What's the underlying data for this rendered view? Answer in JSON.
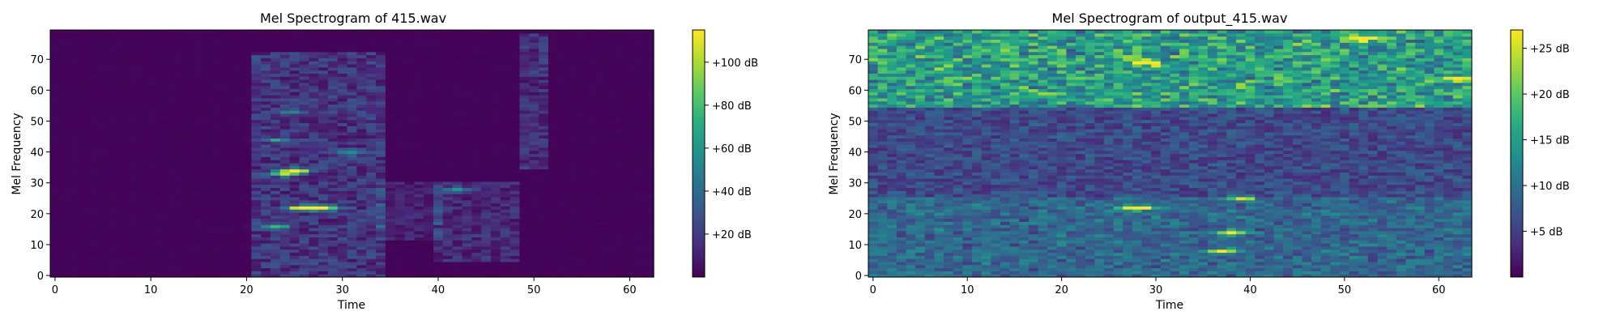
{
  "chart_data": [
    {
      "type": "heatmap",
      "title": "Mel Spectrogram of 415.wav",
      "xlabel": "Time",
      "ylabel": "Mel Frequency",
      "xlim": [
        -0.5,
        62.5
      ],
      "ylim": [
        -0.5,
        79.5
      ],
      "xticks": [
        0,
        10,
        20,
        30,
        40,
        50,
        60
      ],
      "yticks": [
        0,
        10,
        20,
        30,
        40,
        50,
        60,
        70
      ],
      "frames": 63,
      "mel_bins": 80,
      "colormap": "viridis",
      "colorbar": {
        "range": [
          0,
          115
        ],
        "ticks": [
          20,
          40,
          60,
          80,
          100
        ],
        "tick_labels": [
          "+20 dB",
          "+40 dB",
          "+60 dB",
          "+80 dB",
          "+100 dB"
        ]
      },
      "features": [
        {
          "kind": "background",
          "value": 1
        },
        {
          "kind": "region",
          "t": [
            21,
            34
          ],
          "mel": [
            0,
            72
          ],
          "value": 25
        },
        {
          "kind": "region",
          "t": [
            34,
            40
          ],
          "mel": [
            12,
            30
          ],
          "value": 15
        },
        {
          "kind": "region",
          "t": [
            40,
            48
          ],
          "mel": [
            5,
            30
          ],
          "value": 20
        },
        {
          "kind": "region",
          "t": [
            49,
            51
          ],
          "mel": [
            35,
            78
          ],
          "value": 22
        },
        {
          "kind": "blob",
          "t": 25,
          "mel": 34,
          "value": 115
        },
        {
          "kind": "blob",
          "t": 26,
          "mel": 22,
          "value": 115
        },
        {
          "kind": "blob",
          "t": 28,
          "mel": 22,
          "value": 110
        },
        {
          "kind": "blob",
          "t": 24,
          "mel": 33,
          "value": 65
        },
        {
          "kind": "blob",
          "t": 23,
          "mel": 16,
          "value": 60
        },
        {
          "kind": "blob",
          "t": 31,
          "mel": 40,
          "value": 45
        },
        {
          "kind": "blob",
          "t": 25,
          "mel": 53,
          "value": 40
        },
        {
          "kind": "blob",
          "t": 23,
          "mel": 44,
          "value": 45
        },
        {
          "kind": "blob",
          "t": 42,
          "mel": 28,
          "value": 40
        }
      ]
    },
    {
      "type": "heatmap",
      "title": "Mel Spectrogram of output_415.wav",
      "xlabel": "Time",
      "ylabel": "Mel Frequency",
      "xlim": [
        -0.5,
        63.5
      ],
      "ylim": [
        -0.5,
        79.5
      ],
      "xticks": [
        0,
        10,
        20,
        30,
        40,
        50,
        60
      ],
      "yticks": [
        0,
        10,
        20,
        30,
        40,
        50,
        60,
        70
      ],
      "frames": 64,
      "mel_bins": 80,
      "colormap": "viridis",
      "colorbar": {
        "range": [
          0,
          27
        ],
        "ticks": [
          5,
          10,
          15,
          20,
          25
        ],
        "tick_labels": [
          "+5 dB",
          "+10 dB",
          "+15 dB",
          "+20 dB",
          "+25 dB"
        ]
      },
      "features": [
        {
          "kind": "background",
          "value": 6
        },
        {
          "kind": "band",
          "mel": [
            55,
            79
          ],
          "value": 12
        },
        {
          "kind": "band",
          "mel": [
            0,
            25
          ],
          "value": 4
        },
        {
          "kind": "blob",
          "t": 28,
          "mel": 22,
          "value": 27
        },
        {
          "kind": "blob",
          "t": 52,
          "mel": 77,
          "value": 25
        },
        {
          "kind": "blob",
          "t": 38,
          "mel": 14,
          "value": 20
        },
        {
          "kind": "blob",
          "t": 37,
          "mel": 8,
          "value": 18
        },
        {
          "kind": "blob",
          "t": 29,
          "mel": 69,
          "value": 20
        },
        {
          "kind": "blob",
          "t": 62,
          "mel": 64,
          "value": 20
        },
        {
          "kind": "blob",
          "t": 39,
          "mel": 25,
          "value": 16
        }
      ]
    }
  ]
}
